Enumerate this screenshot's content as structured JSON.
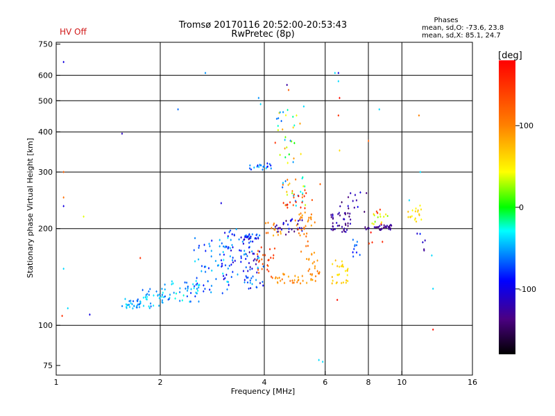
{
  "status": {
    "label": "HV Off",
    "color": "#d01818"
  },
  "chart_data": {
    "type": "scatter",
    "title": "Tromsø 20170116 20:52:00-20:53:43",
    "subtitle": "RwPretec (8p)",
    "xlabel": "Frequency [MHz]",
    "ylabel": "Stationary phase Virtual Height [km]",
    "xscale": "log",
    "yscale": "log",
    "xlim": [
      1,
      16
    ],
    "ylim": [
      70,
      760
    ],
    "xticks": [
      1,
      2,
      4,
      6,
      8,
      10,
      16
    ],
    "yticks": [
      75,
      100,
      200,
      300,
      400,
      500,
      600,
      750
    ],
    "xgrid": [
      2,
      4,
      6,
      8,
      10
    ],
    "ygrid": [
      100,
      200,
      300,
      400,
      500,
      600
    ],
    "grid": true,
    "phases": {
      "title": "Phases",
      "line1": "mean, sd,O:  -73.6, 23.8",
      "line2": "mean, sd,X:  85.1, 24.7"
    },
    "colorbar": {
      "label": "[deg]",
      "range": [
        -180,
        180
      ],
      "ticks": [
        100,
        0,
        -100
      ],
      "colormap": "rainbow"
    },
    "points": [
      {
        "f": 1.05,
        "h": 660,
        "phase": -110
      },
      {
        "f": 2.7,
        "h": 610,
        "phase": -60
      },
      {
        "f": 2.25,
        "h": 470,
        "phase": -70
      },
      {
        "f": 3.85,
        "h": 510,
        "phase": -60
      },
      {
        "f": 1.55,
        "h": 395,
        "phase": -120
      },
      {
        "f": 1.05,
        "h": 300,
        "phase": 120
      },
      {
        "f": 1.05,
        "h": 250,
        "phase": 110
      },
      {
        "f": 1.05,
        "h": 235,
        "phase": -110
      },
      {
        "f": 1.2,
        "h": 218,
        "phase": 40
      },
      {
        "f": 1.05,
        "h": 150,
        "phase": -40
      },
      {
        "f": 1.04,
        "h": 107,
        "phase": 150
      },
      {
        "f": 1.08,
        "h": 113,
        "phase": -40
      },
      {
        "f": 1.25,
        "h": 108,
        "phase": -110
      },
      {
        "f": 1.75,
        "h": 162,
        "phase": 150
      },
      {
        "f": 4.65,
        "h": 560,
        "phase": -130
      },
      {
        "f": 4.7,
        "h": 540,
        "phase": 120
      },
      {
        "f": 6.4,
        "h": 610,
        "phase": -40
      },
      {
        "f": 6.55,
        "h": 610,
        "phase": -110
      },
      {
        "f": 6.55,
        "h": 575,
        "phase": -40
      },
      {
        "f": 6.6,
        "h": 510,
        "phase": 170
      },
      {
        "f": 6.55,
        "h": 450,
        "phase": 150
      },
      {
        "f": 6.6,
        "h": 350,
        "phase": 60
      },
      {
        "f": 8.0,
        "h": 375,
        "phase": 120
      },
      {
        "f": 8.6,
        "h": 470,
        "phase": -40
      },
      {
        "f": 11.2,
        "h": 450,
        "phase": 100
      },
      {
        "f": 11.3,
        "h": 300,
        "phase": -40
      },
      {
        "f": 12.2,
        "h": 165,
        "phase": -40
      },
      {
        "f": 12.3,
        "h": 130,
        "phase": -40
      },
      {
        "f": 12.3,
        "h": 97,
        "phase": 170
      },
      {
        "f": 5.75,
        "h": 78,
        "phase": -40
      },
      {
        "f": 5.9,
        "h": 77,
        "phase": -40
      },
      {
        "f": 3.9,
        "h": 488,
        "phase": -40
      },
      {
        "f": 5.2,
        "h": 480,
        "phase": -40
      },
      {
        "f": 4.3,
        "h": 370,
        "phase": 150
      },
      {
        "f": 6.5,
        "h": 120,
        "phase": 170
      },
      {
        "f": 3.0,
        "h": 240,
        "phase": -110
      },
      {
        "f": 5.8,
        "h": 275,
        "phase": 120
      },
      {
        "f": 10.5,
        "h": 245,
        "phase": -40
      }
    ],
    "clusters": [
      {
        "f": [
          1.55,
          1.75
        ],
        "h": [
          112,
          122
        ],
        "phase": [
          -80,
          -30
        ],
        "n": 28
      },
      {
        "f": [
          1.75,
          2.1
        ],
        "h": [
          113,
          130
        ],
        "phase": [
          -80,
          -30
        ],
        "n": 35
      },
      {
        "f": [
          2.0,
          2.6
        ],
        "h": [
          118,
          138
        ],
        "phase": [
          -90,
          -20
        ],
        "n": 40
      },
      {
        "f": [
          2.5,
          3.2
        ],
        "h": [
          125,
          190
        ],
        "phase": [
          -100,
          -30
        ],
        "n": 60
      },
      {
        "f": [
          3.0,
          3.7
        ],
        "h": [
          135,
          200
        ],
        "phase": [
          -130,
          -50
        ],
        "n": 70
      },
      {
        "f": [
          3.6,
          4.0
        ],
        "h": [
          130,
          175
        ],
        "phase": [
          -130,
          -30
        ],
        "n": 28
      },
      {
        "f": [
          3.5,
          3.9
        ],
        "h": [
          185,
          192
        ],
        "phase": [
          -130,
          -60
        ],
        "n": 22
      },
      {
        "f": [
          3.8,
          4.3
        ],
        "h": [
          140,
          175
        ],
        "phase": [
          110,
          160
        ],
        "n": 26
      },
      {
        "f": [
          3.6,
          4.2
        ],
        "h": [
          305,
          320
        ],
        "phase": [
          -100,
          -40
        ],
        "n": 20
      },
      {
        "f": [
          4.0,
          4.5
        ],
        "h": [
          185,
          210
        ],
        "phase": [
          80,
          120
        ],
        "n": 16
      },
      {
        "f": [
          4.3,
          5.2
        ],
        "h": [
          190,
          215
        ],
        "phase": [
          -150,
          -90
        ],
        "n": 30
      },
      {
        "f": [
          4.3,
          5.2
        ],
        "h": [
          135,
          145
        ],
        "phase": [
          80,
          110
        ],
        "n": 26
      },
      {
        "f": [
          4.5,
          5.3
        ],
        "h": [
          235,
          290
        ],
        "phase": [
          -80,
          160
        ],
        "n": 32
      },
      {
        "f": [
          4.3,
          5.1
        ],
        "h": [
          320,
          470
        ],
        "phase": [
          -80,
          90
        ],
        "n": 30
      },
      {
        "f": [
          4.9,
          5.6
        ],
        "h": [
          190,
          225
        ],
        "phase": [
          80,
          110
        ],
        "n": 22
      },
      {
        "f": [
          5.3,
          5.8
        ],
        "h": [
          135,
          170
        ],
        "phase": [
          80,
          110
        ],
        "n": 26
      },
      {
        "f": [
          6.2,
          7.1
        ],
        "h": [
          195,
          225
        ],
        "phase": [
          -150,
          -110
        ],
        "n": 40
      },
      {
        "f": [
          6.2,
          7.0
        ],
        "h": [
          135,
          160
        ],
        "phase": [
          50,
          80
        ],
        "n": 28
      },
      {
        "f": [
          7.2,
          7.6
        ],
        "h": [
          160,
          185
        ],
        "phase": [
          -100,
          -60
        ],
        "n": 10
      },
      {
        "f": [
          6.6,
          8.0
        ],
        "h": [
          225,
          260
        ],
        "phase": [
          -150,
          -100
        ],
        "n": 14
      },
      {
        "f": [
          7.8,
          9.5
        ],
        "h": [
          198,
          206
        ],
        "phase": [
          -150,
          -120
        ],
        "n": 32
      },
      {
        "f": [
          8.0,
          8.8
        ],
        "h": [
          170,
          230
        ],
        "phase": [
          140,
          170
        ],
        "n": 8
      },
      {
        "f": [
          8.2,
          9.2
        ],
        "h": [
          205,
          225
        ],
        "phase": [
          20,
          60
        ],
        "n": 12
      },
      {
        "f": [
          10.3,
          11.5
        ],
        "h": [
          210,
          240
        ],
        "phase": [
          40,
          80
        ],
        "n": 18
      },
      {
        "f": [
          11.0,
          11.8
        ],
        "h": [
          170,
          200
        ],
        "phase": [
          -140,
          -90
        ],
        "n": 6
      },
      {
        "f": [
          5.0,
          5.4
        ],
        "h": [
          160,
          200
        ],
        "phase": [
          100,
          120
        ],
        "n": 10
      },
      {
        "f": [
          4.5,
          5.5
        ],
        "h": [
          230,
          260
        ],
        "phase": [
          130,
          170
        ],
        "n": 14
      }
    ]
  }
}
